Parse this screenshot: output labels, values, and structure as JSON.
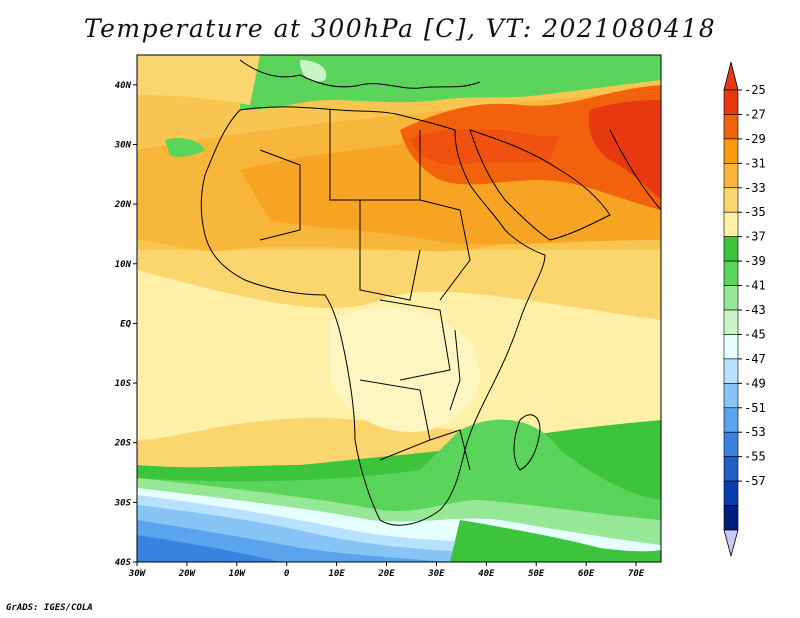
{
  "title": "Temperature at 300hPa [C], VT: 2021080418",
  "credit": "GrADS: IGES/COLA",
  "map": {
    "lon_range": [
      -30,
      75
    ],
    "lat_range": [
      -40,
      45
    ],
    "x_ticks": [
      "30W",
      "20W",
      "10W",
      "0",
      "10E",
      "20E",
      "30E",
      "40E",
      "50E",
      "60E",
      "70E"
    ],
    "y_ticks": [
      "40N",
      "30N",
      "20N",
      "10N",
      "EQ",
      "10S",
      "20S",
      "30S",
      "40S"
    ]
  },
  "colorbar": {
    "levels": [
      "-25",
      "-27",
      "-29",
      "-31",
      "-33",
      "-35",
      "-37",
      "-39",
      "-41",
      "-43",
      "-45",
      "-47",
      "-49",
      "-51",
      "-53",
      "-55",
      "-57"
    ],
    "colors": [
      "#e8380f",
      "#f2620c",
      "#f79a12",
      "#f8b63a",
      "#fbd66f",
      "#fef0a6",
      "#3cc43c",
      "#5ad45a",
      "#96e896",
      "#c8f5c8",
      "#e6ffff",
      "#b8e0ff",
      "#88c4f5",
      "#5aa3ed",
      "#3a82e0",
      "#2060c8",
      "#0a3cb0",
      "#001e78"
    ],
    "cap_top_color": "#e8380f",
    "cap_bottom_color": "#c8c8f5"
  }
}
